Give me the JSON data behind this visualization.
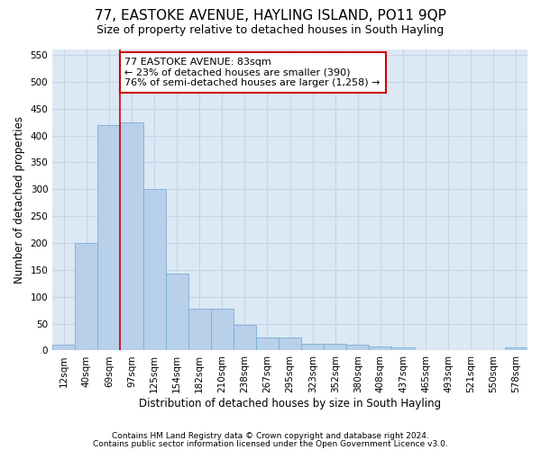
{
  "title_line1": "77, EASTOKE AVENUE, HAYLING ISLAND, PO11 9QP",
  "title_line2": "Size of property relative to detached houses in South Hayling",
  "xlabel": "Distribution of detached houses by size in South Hayling",
  "ylabel": "Number of detached properties",
  "bar_values": [
    10,
    200,
    420,
    425,
    300,
    143,
    78,
    78,
    48,
    25,
    25,
    12,
    12,
    10,
    7,
    5,
    0,
    0,
    0,
    0,
    5
  ],
  "categories": [
    "12sqm",
    "40sqm",
    "69sqm",
    "97sqm",
    "125sqm",
    "154sqm",
    "182sqm",
    "210sqm",
    "238sqm",
    "267sqm",
    "295sqm",
    "323sqm",
    "352sqm",
    "380sqm",
    "408sqm",
    "437sqm",
    "465sqm",
    "493sqm",
    "521sqm",
    "550sqm",
    "578sqm"
  ],
  "bar_color": "#b8d0ea",
  "bar_edge_color": "#7aafd4",
  "grid_color": "#c8d4e4",
  "background_color": "#dce8f4",
  "vline_x": 2.5,
  "vline_color": "#cc0000",
  "annotation_text": "77 EASTOKE AVENUE: 83sqm\n← 23% of detached houses are smaller (390)\n76% of semi-detached houses are larger (1,258) →",
  "annotation_box_color": "#ffffff",
  "annotation_border_color": "#cc0000",
  "ylim": [
    0,
    560
  ],
  "yticks": [
    0,
    50,
    100,
    150,
    200,
    250,
    300,
    350,
    400,
    450,
    500,
    550
  ],
  "footer_line1": "Contains HM Land Registry data © Crown copyright and database right 2024.",
  "footer_line2": "Contains public sector information licensed under the Open Government Licence v3.0.",
  "title_fontsize": 11,
  "subtitle_fontsize": 9,
  "axis_label_fontsize": 8.5,
  "tick_fontsize": 7.5,
  "annotation_fontsize": 8,
  "footer_fontsize": 6.5
}
